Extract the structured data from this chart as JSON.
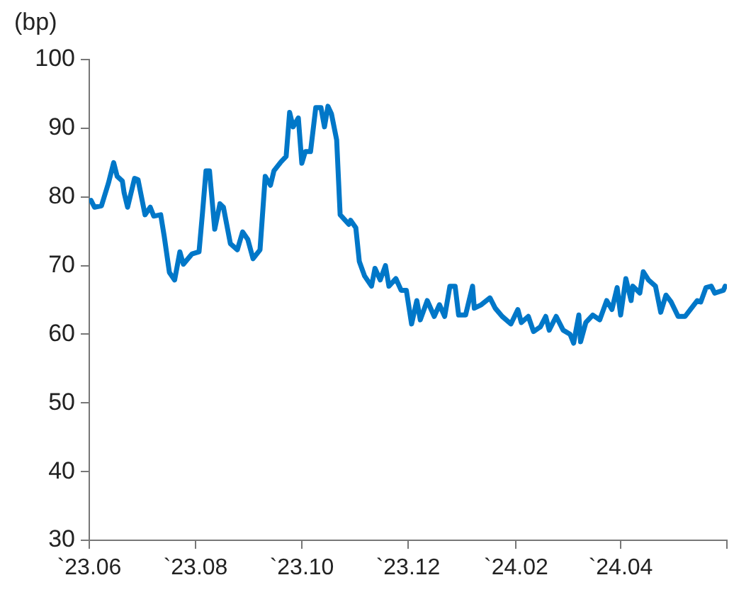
{
  "chart_data": {
    "type": "line",
    "ylabel": "(bp)",
    "xlim": [
      "2023-06-01",
      "2024-06-01"
    ],
    "xticks": [
      {
        "value": "2023-06",
        "label": "`23.06"
      },
      {
        "value": "2023-08",
        "label": "`23.08"
      },
      {
        "value": "2023-10",
        "label": "`23.10"
      },
      {
        "value": "2023-12",
        "label": "`23.12"
      },
      {
        "value": "2024-02",
        "label": "`24.02"
      },
      {
        "value": "2024-04",
        "label": "`24.04"
      },
      {
        "value": "2024-06",
        "label": null
      }
    ],
    "ylim": [
      30,
      100
    ],
    "yticks": [
      30,
      40,
      50,
      60,
      70,
      80,
      90,
      100
    ],
    "grid": false,
    "legend": false,
    "marker": "none",
    "line_style": "solid",
    "x": [
      "2023-06-02",
      "2023-06-04",
      "2023-06-08",
      "2023-06-12",
      "2023-06-15",
      "2023-06-17",
      "2023-06-20",
      "2023-06-21",
      "2023-06-23",
      "2023-06-27",
      "2023-06-29",
      "2023-07-03",
      "2023-07-06",
      "2023-07-08",
      "2023-07-12",
      "2023-07-14",
      "2023-07-17",
      "2023-07-20",
      "2023-07-23",
      "2023-07-25",
      "2023-07-30",
      "2023-08-03",
      "2023-08-05",
      "2023-08-07",
      "2023-08-09",
      "2023-08-12",
      "2023-08-15",
      "2023-08-17",
      "2023-08-21",
      "2023-08-25",
      "2023-08-28",
      "2023-08-31",
      "2023-09-03",
      "2023-09-07",
      "2023-09-10",
      "2023-09-13",
      "2023-09-15",
      "2023-09-19",
      "2023-09-22",
      "2023-09-24",
      "2023-09-26",
      "2023-09-29",
      "2023-10-01",
      "2023-10-03",
      "2023-10-06",
      "2023-10-09",
      "2023-10-12",
      "2023-10-14",
      "2023-10-16",
      "2023-10-18",
      "2023-10-21",
      "2023-10-23",
      "2023-10-28",
      "2023-10-29",
      "2023-11-01",
      "2023-11-03",
      "2023-11-06",
      "2023-11-10",
      "2023-11-12",
      "2023-11-15",
      "2023-11-18",
      "2023-11-20",
      "2023-11-24",
      "2023-11-27",
      "2023-11-30",
      "2023-12-03",
      "2023-12-06",
      "2023-12-08",
      "2023-12-12",
      "2023-12-16",
      "2023-12-19",
      "2023-12-22",
      "2023-12-25",
      "2023-12-28",
      "2023-12-30",
      "2024-01-03",
      "2024-01-07",
      "2024-01-08",
      "2024-01-12",
      "2024-01-17",
      "2024-01-20",
      "2024-01-24",
      "2024-01-29",
      "2024-02-02",
      "2024-02-04",
      "2024-02-08",
      "2024-02-11",
      "2024-02-15",
      "2024-02-18",
      "2024-02-20",
      "2024-02-24",
      "2024-02-28",
      "2024-03-03",
      "2024-03-05",
      "2024-03-08",
      "2024-03-09",
      "2024-03-12",
      "2024-03-16",
      "2024-03-20",
      "2024-03-24",
      "2024-03-27",
      "2024-03-30",
      "2024-04-01",
      "2024-04-04",
      "2024-04-07",
      "2024-04-08",
      "2024-04-12",
      "2024-04-14",
      "2024-04-17",
      "2024-04-21",
      "2024-04-24",
      "2024-04-27",
      "2024-04-30",
      "2024-05-04",
      "2024-05-08",
      "2024-05-11",
      "2024-05-15",
      "2024-05-17",
      "2024-05-20",
      "2024-05-23",
      "2024-05-25",
      "2024-05-30",
      "2024-05-31"
    ],
    "series": [
      {
        "color": "#0077c8",
        "values": [
          79.5,
          78.5,
          78.7,
          82,
          85,
          83,
          82.3,
          80.6,
          78.5,
          82.7,
          82.5,
          77.4,
          78.5,
          77.2,
          77.4,
          74.3,
          69,
          67.9,
          72,
          70.2,
          71.7,
          72,
          77.7,
          83.8,
          83.8,
          75.3,
          79,
          78.5,
          73.2,
          72.3,
          74.9,
          73.8,
          71,
          72.3,
          83,
          81.7,
          83.8,
          85.1,
          85.9,
          92.3,
          90.2,
          91.5,
          84.9,
          86.6,
          86.6,
          93,
          93,
          90.2,
          93.2,
          92.1,
          88.3,
          77.4,
          76,
          76.6,
          75.5,
          70.6,
          68.5,
          67,
          69.6,
          67.9,
          70,
          67,
          68.1,
          66.4,
          66.4,
          61.5,
          64.9,
          62.1,
          64.9,
          62.6,
          64.3,
          62.6,
          67,
          67,
          62.8,
          62.8,
          67,
          63.8,
          64.3,
          65.3,
          63.8,
          62.6,
          61.5,
          63.6,
          61.7,
          62.6,
          60.4,
          61.1,
          62.6,
          60.6,
          62.6,
          60.6,
          60,
          58.7,
          62.8,
          58.9,
          61.7,
          62.8,
          62.1,
          64.9,
          63.6,
          66.8,
          62.8,
          68.1,
          64.9,
          67,
          66,
          69.1,
          67.9,
          67,
          63.2,
          65.7,
          64.7,
          62.6,
          62.6,
          63.6,
          64.9,
          64.7,
          66.8,
          67,
          66,
          66.4,
          67
        ]
      }
    ]
  }
}
